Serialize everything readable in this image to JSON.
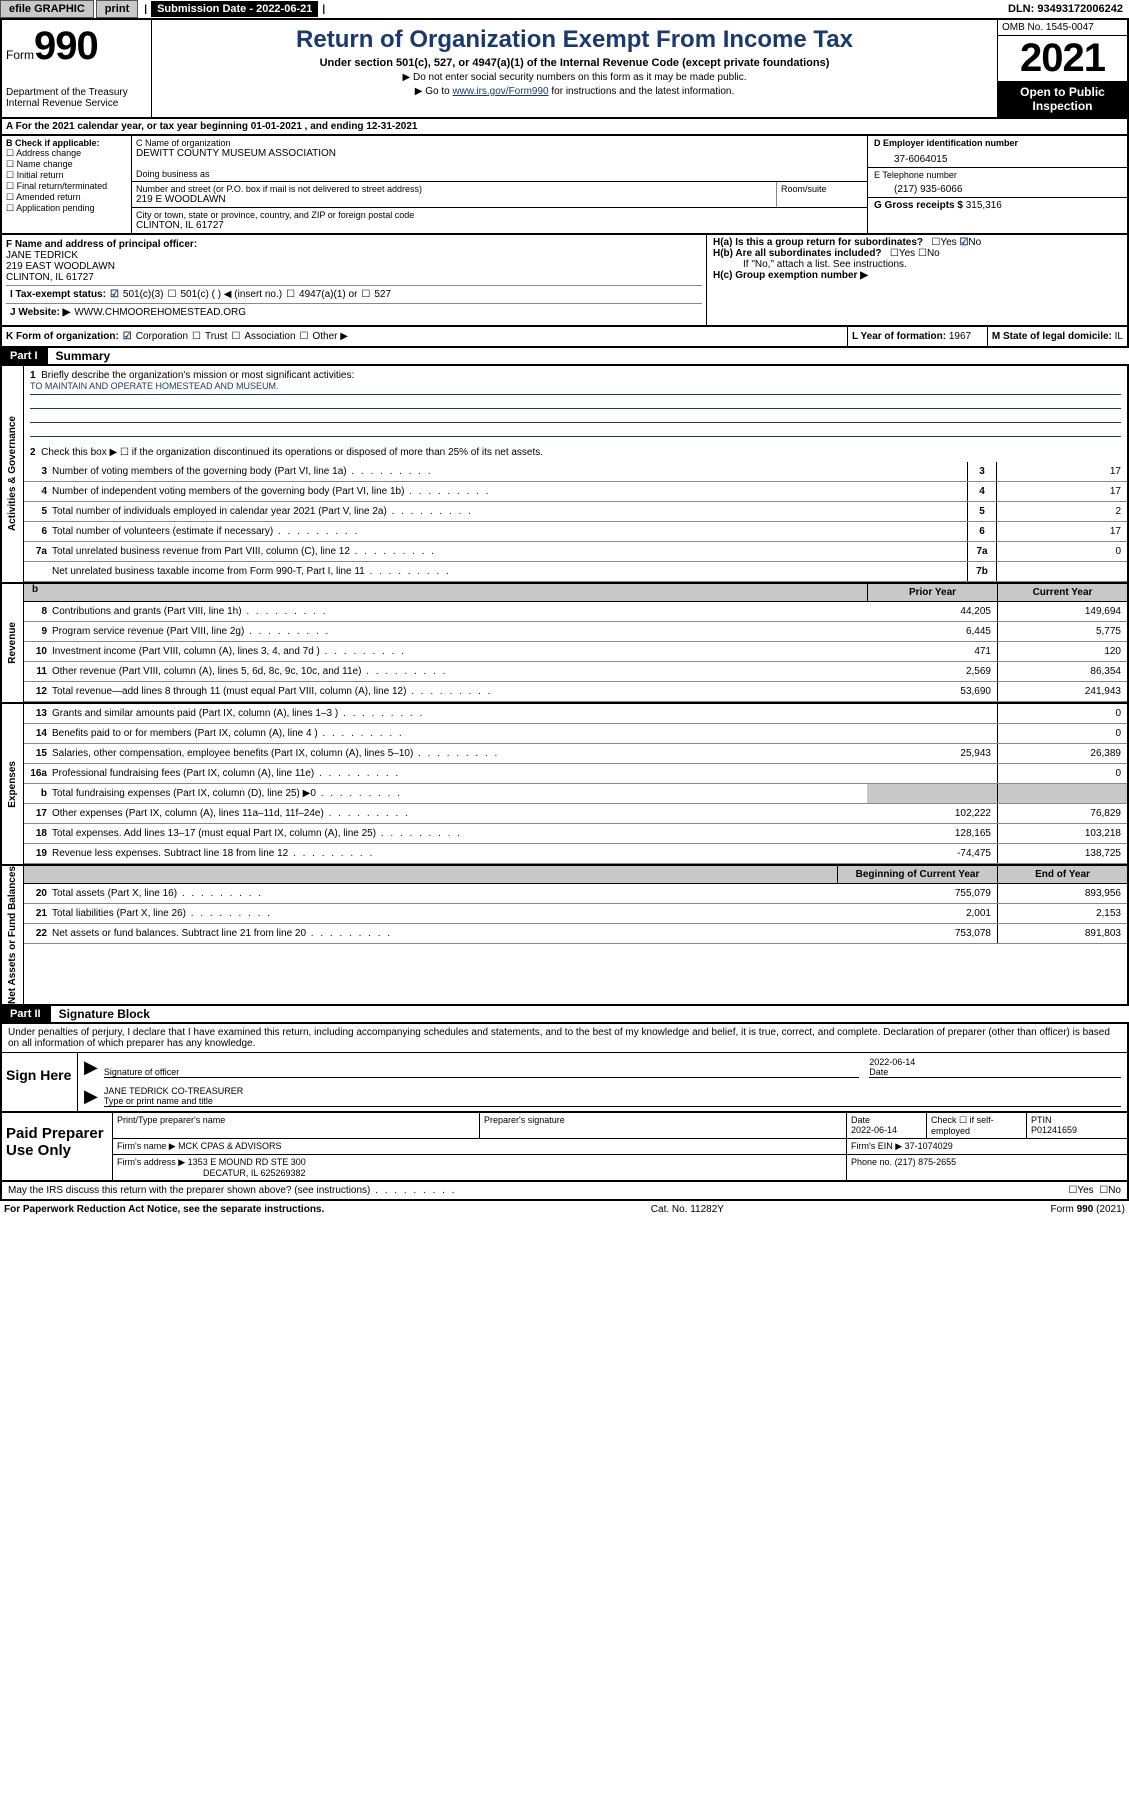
{
  "topbar": {
    "efile": "efile GRAPHIC",
    "print": "print",
    "sub_label": "Submission Date - 2022-06-21",
    "dln_label": "DLN: 93493172006242"
  },
  "header": {
    "form_word": "Form",
    "form_num": "990",
    "title": "Return of Organization Exempt From Income Tax",
    "sub1": "Under section 501(c), 527, or 4947(a)(1) of the Internal Revenue Code (except private foundations)",
    "sub2": "▶ Do not enter social security numbers on this form as it may be made public.",
    "sub3_pre": "▶ Go to ",
    "sub3_link": "www.irs.gov/Form990",
    "sub3_post": " for instructions and the latest information.",
    "dept": "Department of the Treasury\nInternal Revenue Service",
    "omb": "OMB No. 1545-0047",
    "year": "2021",
    "open": "Open to Public Inspection"
  },
  "row_a": "A For the 2021 calendar year, or tax year beginning 01-01-2021   , and ending 12-31-2021",
  "sec_b": {
    "title": "B Check if applicable:",
    "opts": [
      "Address change",
      "Name change",
      "Initial return",
      "Final return/terminated",
      "Amended return",
      "Application pending"
    ]
  },
  "sec_c": {
    "name_label": "C Name of organization",
    "name": "DEWITT COUNTY MUSEUM ASSOCIATION",
    "dba_label": "Doing business as",
    "addr_label": "Number and street (or P.O. box if mail is not delivered to street address)",
    "addr": "219 E WOODLAWN",
    "room_label": "Room/suite",
    "city_label": "City or town, state or province, country, and ZIP or foreign postal code",
    "city": "CLINTON, IL  61727"
  },
  "sec_d": {
    "label": "D Employer identification number",
    "value": "37-6064015"
  },
  "sec_e": {
    "label": "E Telephone number",
    "value": "(217) 935-6066"
  },
  "sec_g": {
    "label": "G Gross receipts $",
    "value": "315,316"
  },
  "sec_f": {
    "label": "F Name and address of principal officer:",
    "name": "JANE TEDRICK",
    "addr": "219 EAST WOODLAWN",
    "city": "CLINTON, IL  61727"
  },
  "sec_h": {
    "ha": "H(a)  Is this a group return for subordinates?",
    "hb": "H(b)  Are all subordinates included?",
    "hb_note": "If \"No,\" attach a list. See instructions.",
    "hc": "H(c)  Group exemption number ▶",
    "yes": "Yes",
    "no": "No"
  },
  "row_i": {
    "label": "I   Tax-exempt status:",
    "opt1": "501(c)(3)",
    "opt2": "501(c) (  ) ◀ (insert no.)",
    "opt3": "4947(a)(1) or",
    "opt4": "527"
  },
  "row_j": {
    "label": "J   Website: ▶",
    "value": "WWW.CHMOOREHOMESTEAD.ORG"
  },
  "row_k": {
    "label": "K Form of organization:",
    "opts": [
      "Corporation",
      "Trust",
      "Association",
      "Other ▶"
    ]
  },
  "row_l": {
    "label": "L Year of formation:",
    "value": "1967"
  },
  "row_m": {
    "label": "M State of legal domicile:",
    "value": "IL"
  },
  "part1": {
    "header": "Part I",
    "title": "Summary"
  },
  "governance": {
    "side": "Activities & Governance",
    "q1": "Briefly describe the organization's mission or most significant activities:",
    "mission": "TO MAINTAIN AND OPERATE HOMESTEAD AND MUSEUM.",
    "q2": "Check this box ▶ ☐  if the organization discontinued its operations or disposed of more than 25% of its net assets.",
    "lines": [
      {
        "n": "3",
        "d": "Number of voting members of the governing body (Part VI, line 1a)",
        "b": "3",
        "v": "17"
      },
      {
        "n": "4",
        "d": "Number of independent voting members of the governing body (Part VI, line 1b)",
        "b": "4",
        "v": "17"
      },
      {
        "n": "5",
        "d": "Total number of individuals employed in calendar year 2021 (Part V, line 2a)",
        "b": "5",
        "v": "2"
      },
      {
        "n": "6",
        "d": "Total number of volunteers (estimate if necessary)",
        "b": "6",
        "v": "17"
      },
      {
        "n": "7a",
        "d": "Total unrelated business revenue from Part VIII, column (C), line 12",
        "b": "7a",
        "v": "0"
      },
      {
        "n": "",
        "d": "Net unrelated business taxable income from Form 990-T, Part I, line 11",
        "b": "7b",
        "v": ""
      }
    ]
  },
  "col_headers": {
    "prior": "Prior Year",
    "current": "Current Year",
    "begin": "Beginning of Current Year",
    "end": "End of Year"
  },
  "revenue": {
    "side": "Revenue",
    "lines": [
      {
        "n": "8",
        "d": "Contributions and grants (Part VIII, line 1h)",
        "p": "44,205",
        "c": "149,694"
      },
      {
        "n": "9",
        "d": "Program service revenue (Part VIII, line 2g)",
        "p": "6,445",
        "c": "5,775"
      },
      {
        "n": "10",
        "d": "Investment income (Part VIII, column (A), lines 3, 4, and 7d )",
        "p": "471",
        "c": "120"
      },
      {
        "n": "11",
        "d": "Other revenue (Part VIII, column (A), lines 5, 6d, 8c, 9c, 10c, and 11e)",
        "p": "2,569",
        "c": "86,354"
      },
      {
        "n": "12",
        "d": "Total revenue—add lines 8 through 11 (must equal Part VIII, column (A), line 12)",
        "p": "53,690",
        "c": "241,943"
      }
    ]
  },
  "expenses": {
    "side": "Expenses",
    "lines": [
      {
        "n": "13",
        "d": "Grants and similar amounts paid (Part IX, column (A), lines 1–3 )",
        "p": "",
        "c": "0"
      },
      {
        "n": "14",
        "d": "Benefits paid to or for members (Part IX, column (A), line 4 )",
        "p": "",
        "c": "0"
      },
      {
        "n": "15",
        "d": "Salaries, other compensation, employee benefits (Part IX, column (A), lines 5–10)",
        "p": "25,943",
        "c": "26,389"
      },
      {
        "n": "16a",
        "d": "Professional fundraising fees (Part IX, column (A), line 11e)",
        "p": "",
        "c": "0"
      },
      {
        "n": "b",
        "d": "Total fundraising expenses (Part IX, column (D), line 25) ▶0",
        "p": "",
        "c": "",
        "shade": true
      },
      {
        "n": "17",
        "d": "Other expenses (Part IX, column (A), lines 11a–11d, 11f–24e)",
        "p": "102,222",
        "c": "76,829"
      },
      {
        "n": "18",
        "d": "Total expenses. Add lines 13–17 (must equal Part IX, column (A), line 25)",
        "p": "128,165",
        "c": "103,218"
      },
      {
        "n": "19",
        "d": "Revenue less expenses. Subtract line 18 from line 12",
        "p": "-74,475",
        "c": "138,725"
      }
    ]
  },
  "netassets": {
    "side": "Net Assets or Fund Balances",
    "lines": [
      {
        "n": "20",
        "d": "Total assets (Part X, line 16)",
        "p": "755,079",
        "c": "893,956"
      },
      {
        "n": "21",
        "d": "Total liabilities (Part X, line 26)",
        "p": "2,001",
        "c": "2,153"
      },
      {
        "n": "22",
        "d": "Net assets or fund balances. Subtract line 21 from line 20",
        "p": "753,078",
        "c": "891,803"
      }
    ]
  },
  "part2": {
    "header": "Part II",
    "title": "Signature Block"
  },
  "sig": {
    "text": "Under penalties of perjury, I declare that I have examined this return, including accompanying schedules and statements, and to the best of my knowledge and belief, it is true, correct, and complete. Declaration of preparer (other than officer) is based on all information of which preparer has any knowledge.",
    "sign_here": "Sign Here",
    "sig_officer": "Signature of officer",
    "date": "2022-06-14",
    "date_label": "Date",
    "name": "JANE TEDRICK  CO-TREASURER",
    "name_label": "Type or print name and title"
  },
  "prep": {
    "label": "Paid Preparer Use Only",
    "h1": "Print/Type preparer's name",
    "h2": "Preparer's signature",
    "h3": "Date",
    "date": "2022-06-14",
    "h4": "Check ☐ if self-employed",
    "h5": "PTIN",
    "ptin": "P01241659",
    "firm_label": "Firm's name    ▶",
    "firm": "MCK CPAS & ADVISORS",
    "ein_label": "Firm's EIN ▶",
    "ein": "37-1074029",
    "addr_label": "Firm's address ▶",
    "addr1": "1353 E MOUND RD STE 300",
    "addr2": "DECATUR, IL  625269382",
    "phone_label": "Phone no.",
    "phone": "(217) 875-2655"
  },
  "discuss": "May the IRS discuss this return with the preparer shown above? (see instructions)",
  "footer": {
    "left": "For Paperwork Reduction Act Notice, see the separate instructions.",
    "mid": "Cat. No. 11282Y",
    "right": "Form 990 (2021)"
  }
}
